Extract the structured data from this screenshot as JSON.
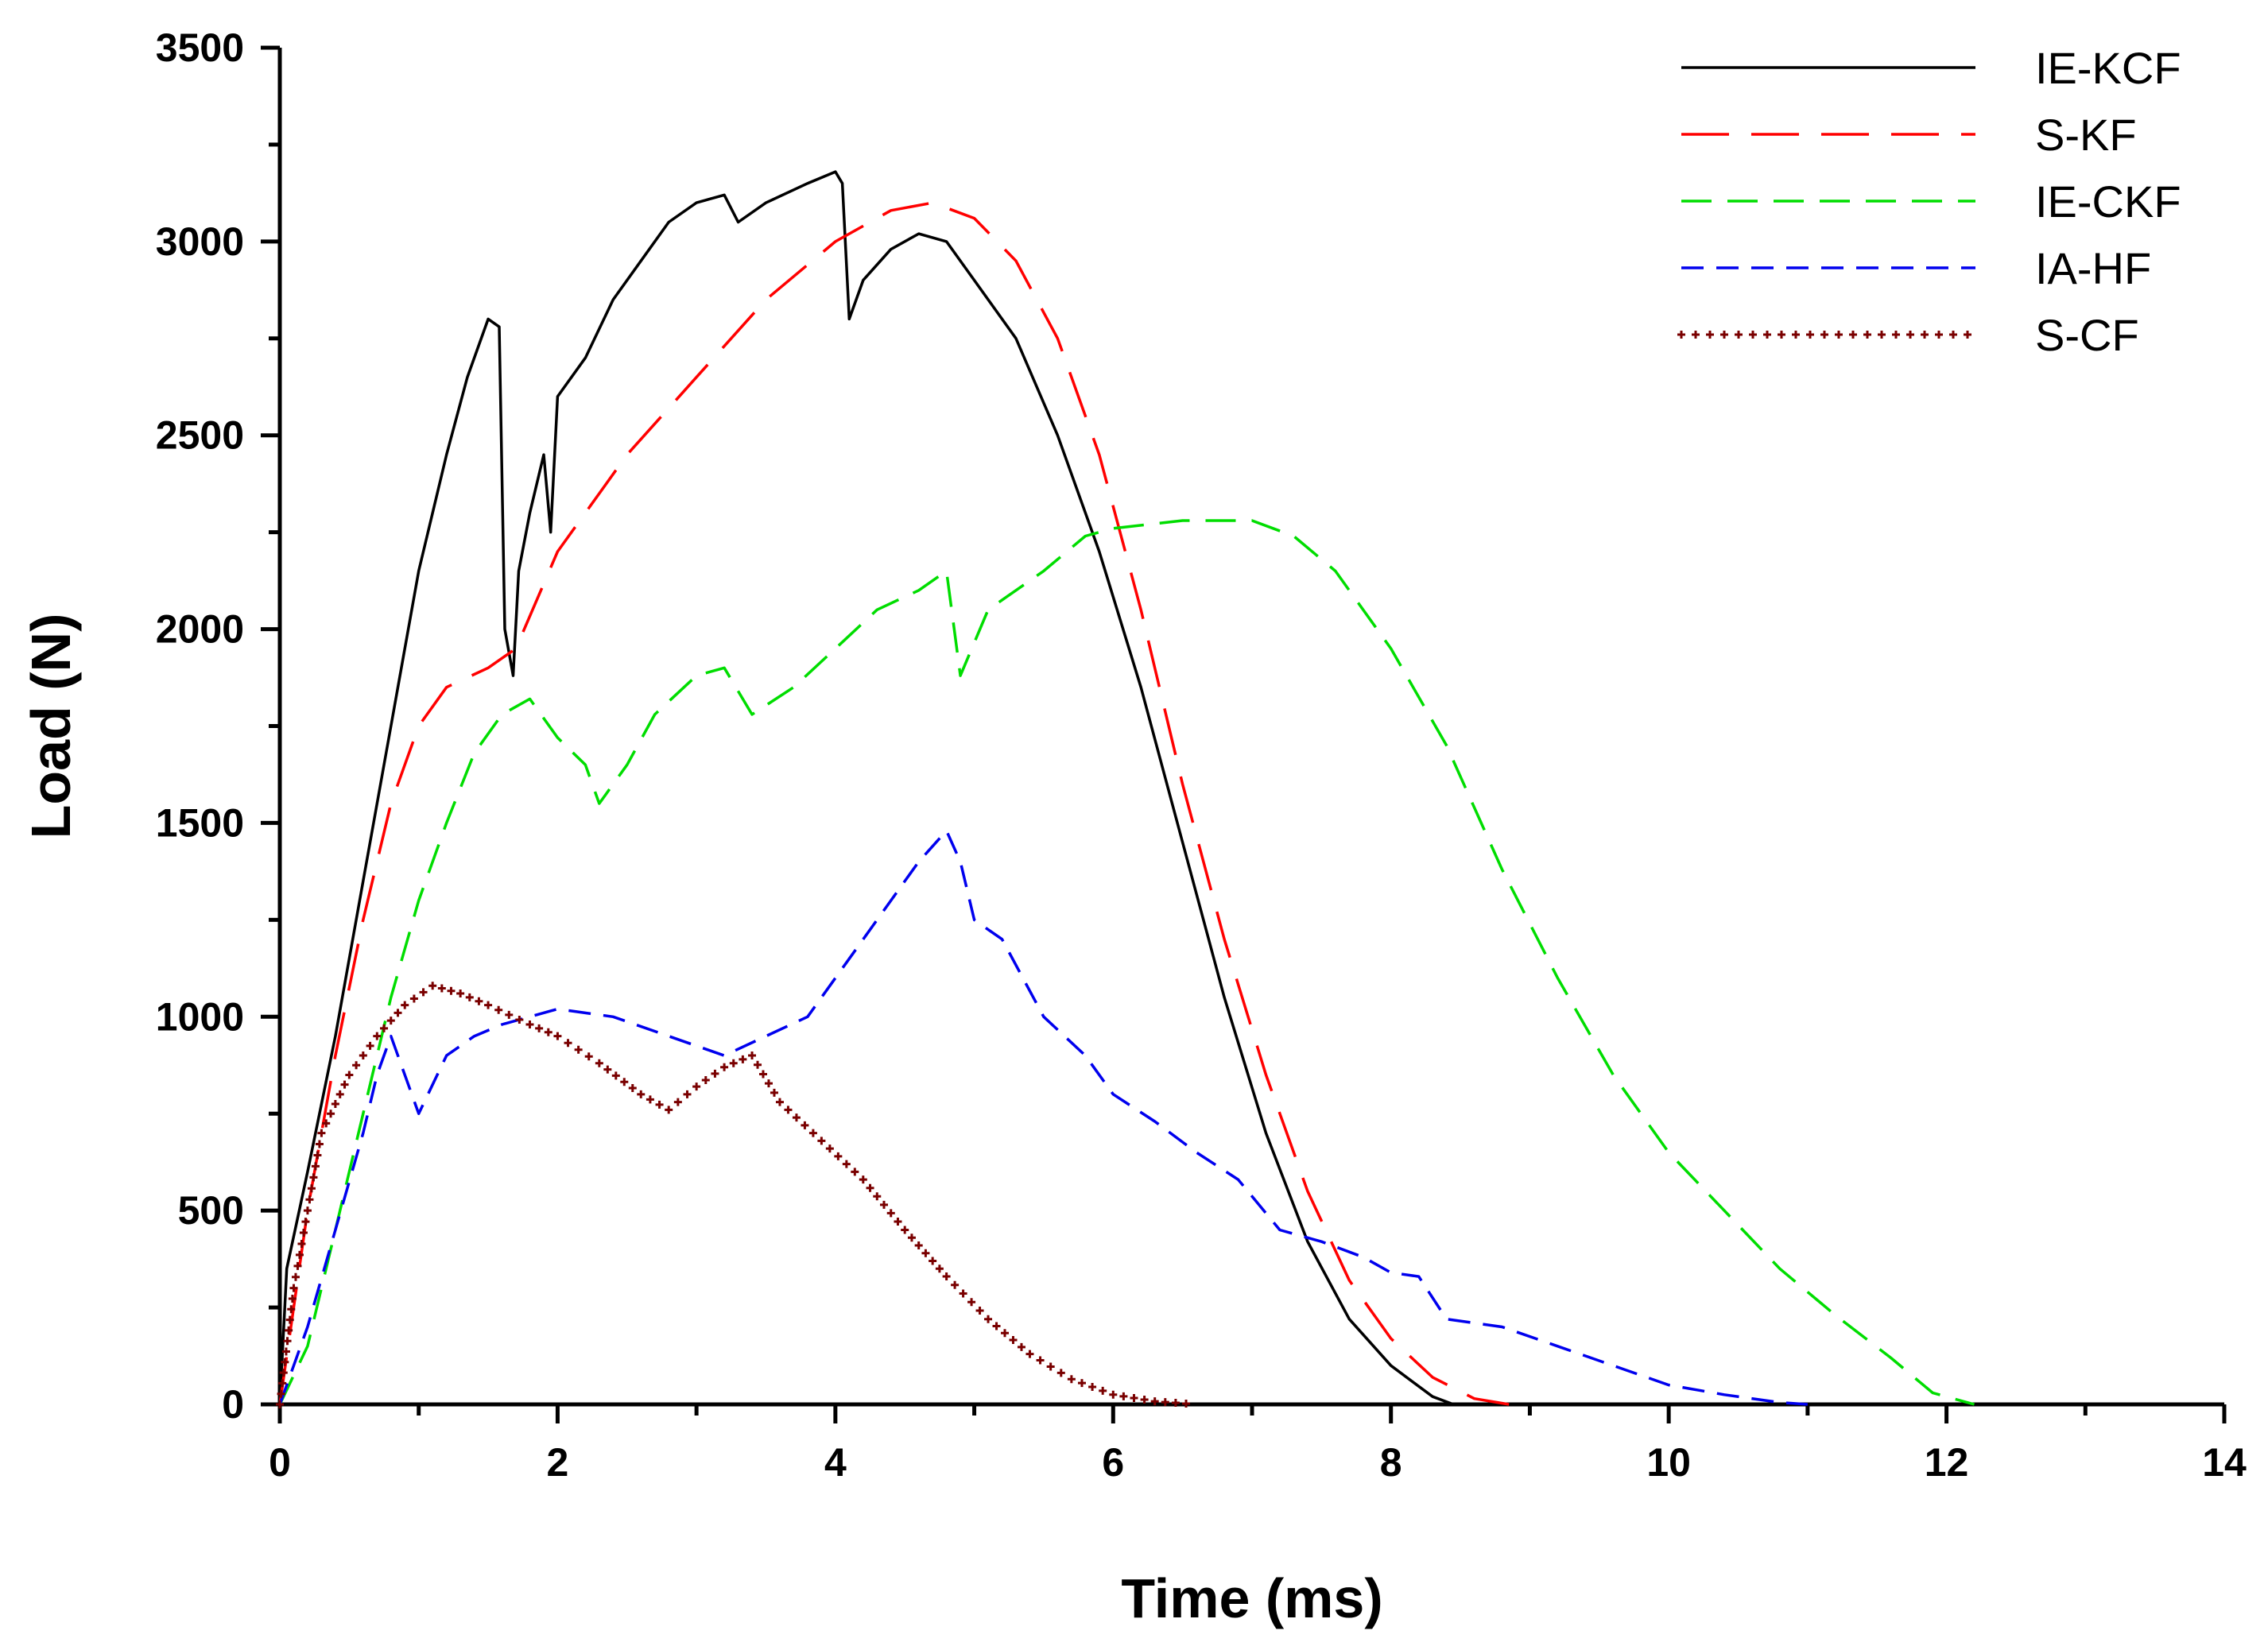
{
  "chart_data": {
    "type": "line",
    "title": "",
    "xlabel": "Time (ms)",
    "ylabel": "Load (N)",
    "xlim": [
      0,
      14
    ],
    "ylim": [
      0,
      3500
    ],
    "x_ticks": [
      0,
      2,
      4,
      6,
      8,
      10,
      12,
      14
    ],
    "y_ticks": [
      0,
      500,
      1000,
      1500,
      2000,
      2500,
      3000,
      3500
    ],
    "grid": false,
    "legend_position": "top-right",
    "series": [
      {
        "name": "IE-KCF",
        "color": "#000000",
        "style": "solid",
        "points": [
          [
            0,
            0
          ],
          [
            0.05,
            350
          ],
          [
            0.2,
            600
          ],
          [
            0.4,
            950
          ],
          [
            0.6,
            1350
          ],
          [
            0.8,
            1750
          ],
          [
            1.0,
            2150
          ],
          [
            1.2,
            2450
          ],
          [
            1.35,
            2650
          ],
          [
            1.5,
            2800
          ],
          [
            1.58,
            2780
          ],
          [
            1.62,
            2000
          ],
          [
            1.68,
            1880
          ],
          [
            1.72,
            2150
          ],
          [
            1.8,
            2300
          ],
          [
            1.9,
            2450
          ],
          [
            1.95,
            2250
          ],
          [
            2.0,
            2600
          ],
          [
            2.2,
            2700
          ],
          [
            2.4,
            2850
          ],
          [
            2.6,
            2950
          ],
          [
            2.8,
            3050
          ],
          [
            3.0,
            3100
          ],
          [
            3.2,
            3120
          ],
          [
            3.3,
            3050
          ],
          [
            3.5,
            3100
          ],
          [
            3.8,
            3150
          ],
          [
            4.0,
            3180
          ],
          [
            4.05,
            3150
          ],
          [
            4.1,
            2800
          ],
          [
            4.2,
            2900
          ],
          [
            4.4,
            2980
          ],
          [
            4.6,
            3020
          ],
          [
            4.8,
            3000
          ],
          [
            5.0,
            2900
          ],
          [
            5.3,
            2750
          ],
          [
            5.6,
            2500
          ],
          [
            5.9,
            2200
          ],
          [
            6.2,
            1850
          ],
          [
            6.5,
            1450
          ],
          [
            6.8,
            1050
          ],
          [
            7.1,
            700
          ],
          [
            7.4,
            420
          ],
          [
            7.7,
            220
          ],
          [
            8.0,
            100
          ],
          [
            8.3,
            20
          ],
          [
            8.45,
            0
          ]
        ]
      },
      {
        "name": "S-KF",
        "color": "#ff0000",
        "style": "long-dash",
        "points": [
          [
            0,
            0
          ],
          [
            0.2,
            500
          ],
          [
            0.4,
            900
          ],
          [
            0.6,
            1250
          ],
          [
            0.8,
            1550
          ],
          [
            1.0,
            1750
          ],
          [
            1.2,
            1850
          ],
          [
            1.5,
            1900
          ],
          [
            1.7,
            1950
          ],
          [
            2.0,
            2200
          ],
          [
            2.5,
            2450
          ],
          [
            3.0,
            2650
          ],
          [
            3.5,
            2850
          ],
          [
            4.0,
            3000
          ],
          [
            4.4,
            3080
          ],
          [
            4.7,
            3100
          ],
          [
            5.0,
            3060
          ],
          [
            5.3,
            2950
          ],
          [
            5.6,
            2750
          ],
          [
            5.9,
            2450
          ],
          [
            6.2,
            2050
          ],
          [
            6.5,
            1600
          ],
          [
            6.8,
            1200
          ],
          [
            7.1,
            850
          ],
          [
            7.4,
            550
          ],
          [
            7.7,
            320
          ],
          [
            8.0,
            170
          ],
          [
            8.3,
            70
          ],
          [
            8.6,
            15
          ],
          [
            8.85,
            0
          ]
        ]
      },
      {
        "name": "IE-CKF",
        "color": "#00dd00",
        "style": "dash",
        "points": [
          [
            0,
            0
          ],
          [
            0.2,
            150
          ],
          [
            0.4,
            450
          ],
          [
            0.6,
            750
          ],
          [
            0.8,
            1050
          ],
          [
            1.0,
            1300
          ],
          [
            1.2,
            1500
          ],
          [
            1.4,
            1680
          ],
          [
            1.6,
            1780
          ],
          [
            1.8,
            1820
          ],
          [
            2.0,
            1720
          ],
          [
            2.2,
            1650
          ],
          [
            2.3,
            1550
          ],
          [
            2.5,
            1650
          ],
          [
            2.7,
            1780
          ],
          [
            3.0,
            1880
          ],
          [
            3.2,
            1900
          ],
          [
            3.4,
            1780
          ],
          [
            3.7,
            1850
          ],
          [
            4.0,
            1950
          ],
          [
            4.3,
            2050
          ],
          [
            4.6,
            2100
          ],
          [
            4.8,
            2150
          ],
          [
            4.9,
            1880
          ],
          [
            5.1,
            2050
          ],
          [
            5.5,
            2150
          ],
          [
            5.8,
            2240
          ],
          [
            6.0,
            2260
          ],
          [
            6.5,
            2280
          ],
          [
            7.0,
            2280
          ],
          [
            7.3,
            2240
          ],
          [
            7.6,
            2150
          ],
          [
            8.0,
            1950
          ],
          [
            8.4,
            1700
          ],
          [
            8.8,
            1380
          ],
          [
            9.2,
            1100
          ],
          [
            9.6,
            850
          ],
          [
            10.0,
            650
          ],
          [
            10.4,
            500
          ],
          [
            10.8,
            350
          ],
          [
            11.2,
            230
          ],
          [
            11.6,
            120
          ],
          [
            11.9,
            30
          ],
          [
            12.2,
            0
          ]
        ]
      },
      {
        "name": "IA-HF",
        "color": "#0000ee",
        "style": "medium-dash",
        "points": [
          [
            0,
            0
          ],
          [
            0.2,
            200
          ],
          [
            0.4,
            450
          ],
          [
            0.6,
            700
          ],
          [
            0.7,
            850
          ],
          [
            0.8,
            950
          ],
          [
            1.0,
            750
          ],
          [
            1.2,
            900
          ],
          [
            1.4,
            950
          ],
          [
            1.6,
            980
          ],
          [
            2.0,
            1020
          ],
          [
            2.4,
            1000
          ],
          [
            2.8,
            950
          ],
          [
            3.2,
            900
          ],
          [
            3.5,
            950
          ],
          [
            3.8,
            1000
          ],
          [
            4.0,
            1100
          ],
          [
            4.3,
            1250
          ],
          [
            4.6,
            1400
          ],
          [
            4.8,
            1480
          ],
          [
            4.9,
            1400
          ],
          [
            5.0,
            1250
          ],
          [
            5.2,
            1200
          ],
          [
            5.5,
            1000
          ],
          [
            5.8,
            900
          ],
          [
            6.0,
            800
          ],
          [
            6.3,
            730
          ],
          [
            6.6,
            650
          ],
          [
            6.9,
            580
          ],
          [
            7.2,
            450
          ],
          [
            7.5,
            420
          ],
          [
            7.8,
            380
          ],
          [
            8.0,
            340
          ],
          [
            8.2,
            330
          ],
          [
            8.4,
            220
          ],
          [
            8.8,
            200
          ],
          [
            9.2,
            150
          ],
          [
            9.6,
            100
          ],
          [
            10.0,
            50
          ],
          [
            10.4,
            25
          ],
          [
            10.8,
            5
          ],
          [
            11.0,
            0
          ]
        ]
      },
      {
        "name": "S-CF",
        "color": "#7a0000",
        "style": "dotted",
        "points": [
          [
            0,
            0
          ],
          [
            0.1,
            300
          ],
          [
            0.3,
            700
          ],
          [
            0.5,
            850
          ],
          [
            0.7,
            950
          ],
          [
            0.9,
            1030
          ],
          [
            1.1,
            1080
          ],
          [
            1.3,
            1060
          ],
          [
            1.5,
            1030
          ],
          [
            1.8,
            980
          ],
          [
            2.0,
            950
          ],
          [
            2.3,
            880
          ],
          [
            2.6,
            800
          ],
          [
            2.8,
            760
          ],
          [
            3.0,
            820
          ],
          [
            3.2,
            870
          ],
          [
            3.4,
            900
          ],
          [
            3.6,
            780
          ],
          [
            3.9,
            680
          ],
          [
            4.2,
            580
          ],
          [
            4.5,
            450
          ],
          [
            4.8,
            330
          ],
          [
            5.1,
            220
          ],
          [
            5.4,
            130
          ],
          [
            5.7,
            65
          ],
          [
            6.0,
            25
          ],
          [
            6.3,
            8
          ],
          [
            6.6,
            0
          ]
        ]
      }
    ]
  }
}
